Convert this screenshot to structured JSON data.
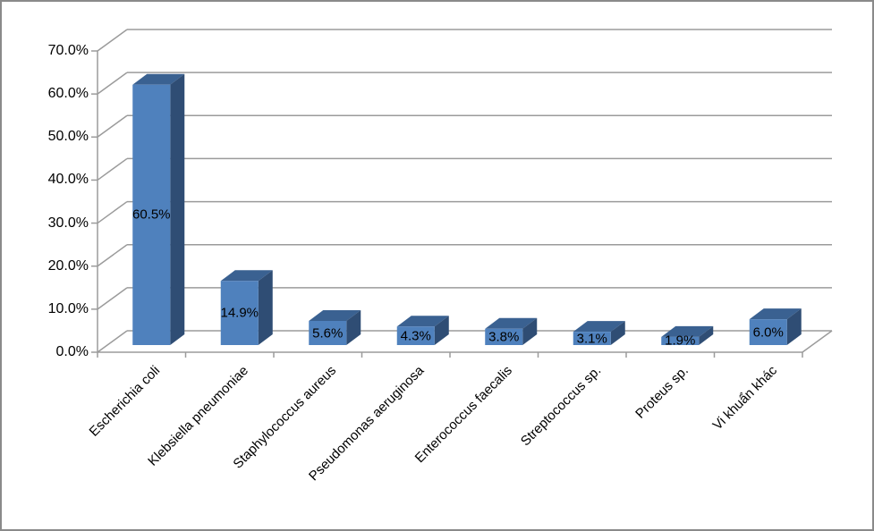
{
  "chart_data": {
    "type": "bar",
    "style": "3d-column",
    "title": "",
    "xlabel": "",
    "ylabel": "",
    "grid": true,
    "legend": false,
    "ylim": [
      0,
      70
    ],
    "categories": [
      "Escherichia coli",
      "Klebsiella pneumoniae",
      "Staphylococcus aureus",
      "Pseudomonas aeruginosa",
      "Enterococcus faecalis",
      "Streptococcus sp.",
      "Proteus sp.",
      "Vi khuẩn khác"
    ],
    "values": [
      60.5,
      14.9,
      5.6,
      4.3,
      3.8,
      3.1,
      1.9,
      6.0
    ],
    "data_labels": [
      "60.5%",
      "14.9%",
      "5.6%",
      "4.3%",
      "3.8%",
      "3.1%",
      "1.9%",
      "6.0%"
    ],
    "y_tick_labels": [
      "70.0%",
      "60.0%",
      "50.0%",
      "40.0%",
      "30.0%",
      "20.0%",
      "10.0%",
      "0.0%"
    ],
    "y_tick_values": [
      70,
      60,
      50,
      40,
      30,
      20,
      10,
      0
    ],
    "colors": {
      "bar_front": "#4f81bd",
      "bar_top": "#3a6191",
      "bar_side": "#2f4d74",
      "gridline": "#9b9b9b",
      "axis": "#9b9b9b",
      "text": "#000000",
      "border": "#8a8a8a",
      "background": "#ffffff"
    }
  }
}
